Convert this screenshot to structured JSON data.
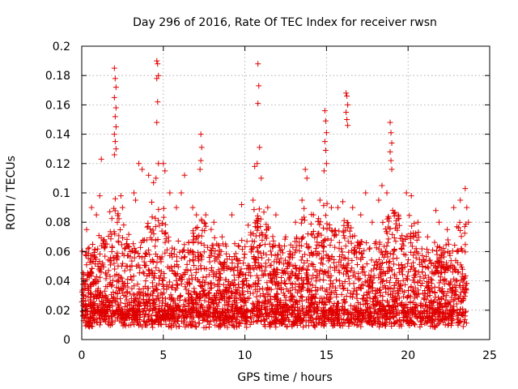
{
  "chart_data": {
    "type": "scatter",
    "title": "Day 296 of 2016, Rate Of TEC Index for receiver rwsn",
    "xlabel": "GPS time / hours",
    "ylabel": "ROTI / TECUs",
    "xlim": [
      0,
      25
    ],
    "ylim": [
      0,
      0.2
    ],
    "xticks": [
      0,
      5,
      10,
      15,
      20,
      25
    ],
    "xtick_labels": [
      "0",
      "5",
      "10",
      "15",
      "20",
      "25"
    ],
    "yticks": [
      0,
      0.02,
      0.04,
      0.06,
      0.08,
      0.1,
      0.12,
      0.14,
      0.16,
      0.18,
      0.2
    ],
    "ytick_labels": [
      "0",
      "0.02",
      "0.04",
      "0.06",
      "0.08",
      "0.1",
      "0.12",
      "0.14",
      "0.16",
      "0.18",
      "0.2"
    ],
    "grid": true,
    "marker": "+",
    "color": "#e00000",
    "series": [
      {
        "name": "ROTI",
        "points": [
          [
            2.0,
            0.185
          ],
          [
            2.05,
            0.178
          ],
          [
            2.1,
            0.172
          ],
          [
            2.0,
            0.165
          ],
          [
            2.1,
            0.158
          ],
          [
            2.05,
            0.152
          ],
          [
            2.1,
            0.145
          ],
          [
            2.0,
            0.14
          ],
          [
            2.05,
            0.135
          ],
          [
            2.1,
            0.13
          ],
          [
            2.0,
            0.126
          ],
          [
            4.6,
            0.19
          ],
          [
            4.65,
            0.188
          ],
          [
            4.7,
            0.18
          ],
          [
            4.6,
            0.178
          ],
          [
            4.65,
            0.162
          ],
          [
            4.6,
            0.148
          ],
          [
            4.7,
            0.12
          ],
          [
            4.55,
            0.11
          ],
          [
            10.8,
            0.188
          ],
          [
            10.85,
            0.173
          ],
          [
            10.8,
            0.161
          ],
          [
            10.9,
            0.131
          ],
          [
            10.75,
            0.12
          ],
          [
            10.6,
            0.118
          ],
          [
            14.9,
            0.156
          ],
          [
            14.95,
            0.149
          ],
          [
            15.0,
            0.141
          ],
          [
            14.9,
            0.135
          ],
          [
            14.95,
            0.129
          ],
          [
            15.0,
            0.12
          ],
          [
            14.85,
            0.115
          ],
          [
            16.2,
            0.168
          ],
          [
            16.25,
            0.166
          ],
          [
            16.3,
            0.16
          ],
          [
            16.2,
            0.155
          ],
          [
            16.25,
            0.15
          ],
          [
            16.3,
            0.146
          ],
          [
            18.9,
            0.148
          ],
          [
            18.95,
            0.141
          ],
          [
            19.0,
            0.134
          ],
          [
            18.9,
            0.128
          ],
          [
            18.95,
            0.122
          ],
          [
            19.0,
            0.116
          ],
          [
            7.3,
            0.14
          ],
          [
            7.35,
            0.131
          ],
          [
            7.3,
            0.122
          ],
          [
            7.25,
            0.116
          ],
          [
            1.2,
            0.123
          ],
          [
            3.5,
            0.12
          ],
          [
            3.7,
            0.116
          ],
          [
            4.1,
            0.112
          ],
          [
            5.0,
            0.12
          ],
          [
            5.1,
            0.115
          ],
          [
            6.3,
            0.112
          ],
          [
            9.8,
            0.092
          ],
          [
            11.0,
            0.11
          ],
          [
            13.7,
            0.116
          ],
          [
            13.8,
            0.11
          ],
          [
            15.7,
            0.09
          ],
          [
            17.4,
            0.1
          ],
          [
            18.4,
            0.105
          ],
          [
            19.9,
            0.1
          ],
          [
            21.7,
            0.088
          ],
          [
            22.8,
            0.09
          ],
          [
            23.2,
            0.095
          ],
          [
            23.5,
            0.103
          ],
          [
            0.3,
            0.075
          ],
          [
            0.6,
            0.09
          ],
          [
            0.9,
            0.085
          ],
          [
            1.1,
            0.098
          ],
          [
            2.4,
            0.098
          ],
          [
            2.5,
            0.09
          ],
          [
            3.2,
            0.1
          ],
          [
            3.3,
            0.095
          ],
          [
            4.4,
            0.107
          ],
          [
            5.4,
            0.1
          ],
          [
            5.8,
            0.09
          ],
          [
            6.1,
            0.1
          ],
          [
            6.8,
            0.09
          ],
          [
            7.6,
            0.085
          ],
          [
            8.1,
            0.08
          ],
          [
            8.6,
            0.07
          ],
          [
            9.2,
            0.085
          ],
          [
            10.2,
            0.078
          ],
          [
            10.5,
            0.095
          ],
          [
            11.4,
            0.09
          ],
          [
            11.9,
            0.085
          ],
          [
            12.5,
            0.07
          ],
          [
            13.1,
            0.08
          ],
          [
            13.5,
            0.095
          ],
          [
            14.2,
            0.085
          ],
          [
            14.6,
            0.095
          ],
          [
            15.3,
            0.09
          ],
          [
            16.0,
            0.094
          ],
          [
            16.6,
            0.09
          ],
          [
            17.1,
            0.085
          ],
          [
            17.8,
            0.08
          ],
          [
            18.2,
            0.095
          ],
          [
            18.7,
            0.1
          ],
          [
            19.4,
            0.085
          ],
          [
            20.2,
            0.098
          ],
          [
            20.6,
            0.08
          ],
          [
            21.2,
            0.07
          ],
          [
            21.9,
            0.08
          ],
          [
            22.4,
            0.075
          ],
          [
            23.0,
            0.06
          ],
          [
            23.6,
            0.09
          ],
          [
            23.7,
            0.08
          ]
        ]
      }
    ]
  }
}
